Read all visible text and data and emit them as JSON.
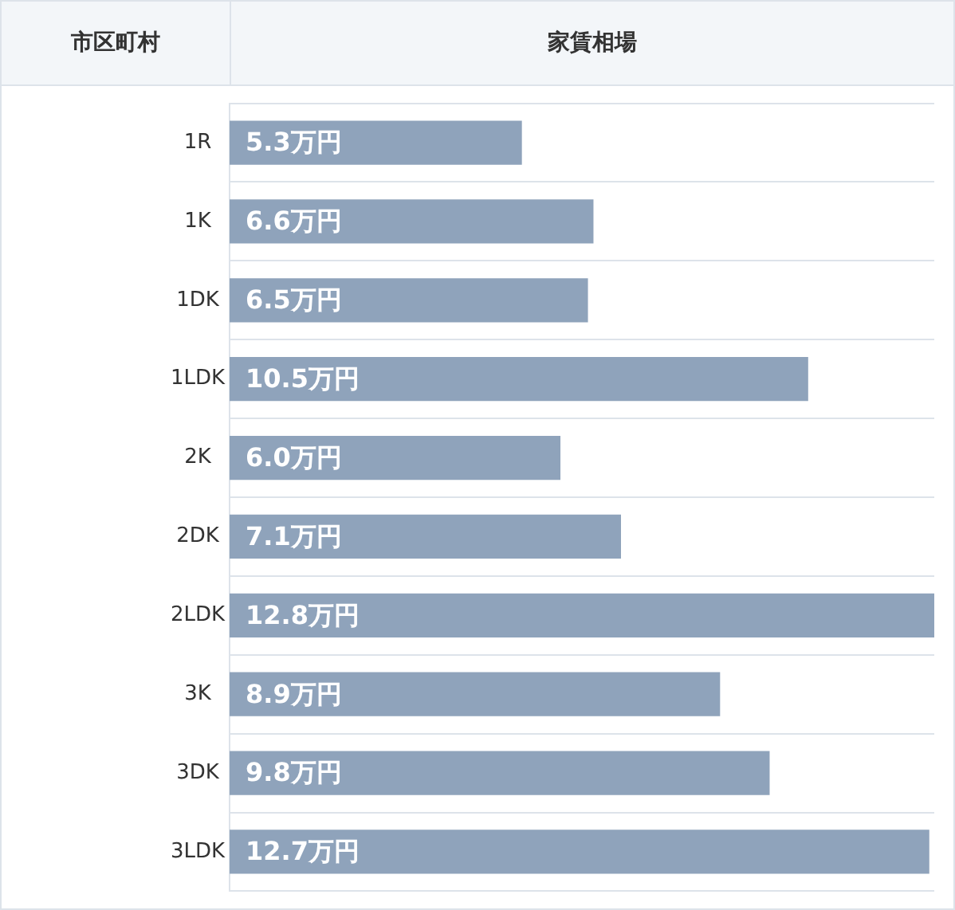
{
  "chart_data": {
    "type": "bar",
    "orientation": "horizontal",
    "ylabel": "市区町村",
    "xlabel": "家賃相場",
    "categories": [
      "1R",
      "1K",
      "1DK",
      "1LDK",
      "2K",
      "2DK",
      "2LDK",
      "3K",
      "3DK",
      "3LDK"
    ],
    "values": [
      5.3,
      6.6,
      6.5,
      10.5,
      6.0,
      7.1,
      12.8,
      8.9,
      9.8,
      12.7
    ],
    "value_labels": [
      "5.3万円",
      "6.6万円",
      "6.5万円",
      "10.5万円",
      "6.0万円",
      "7.1万円",
      "12.8万円",
      "8.9万円",
      "9.8万円",
      "12.7万円"
    ],
    "color": "#8fa3bb",
    "xlim": [
      0,
      12.8
    ],
    "tick_labels": "y",
    "grid": "y",
    "legend": false
  }
}
